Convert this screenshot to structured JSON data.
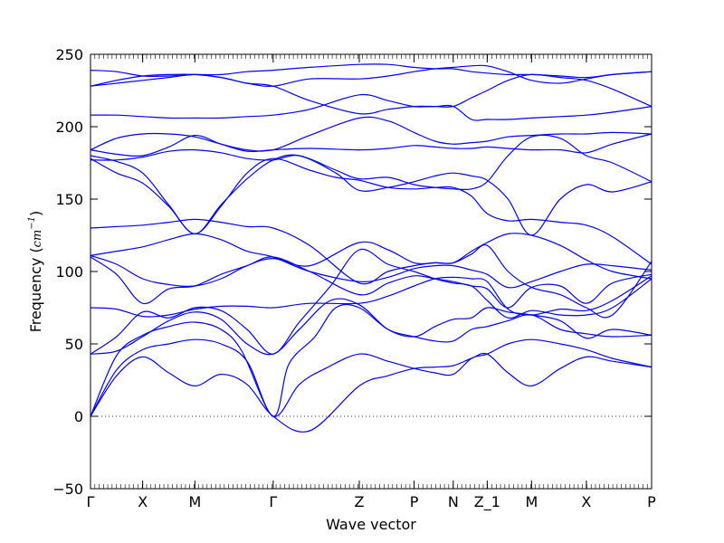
{
  "chart_data": {
    "type": "line",
    "xlabel": "Wave vector",
    "ylabel_text": "Frequency (",
    "ylabel_unit_base": "cm",
    "ylabel_unit_exp": "−1",
    "ylabel_close": ")",
    "ylim": [
      -50,
      250
    ],
    "yticks": [
      -50,
      0,
      50,
      100,
      150,
      200,
      250
    ],
    "xlim": [
      0,
      10.75
    ],
    "high_symmetry_points": [
      {
        "label": "Γ",
        "x": 0.0
      },
      {
        "label": "X",
        "x": 1.0
      },
      {
        "label": "M",
        "x": 2.0
      },
      {
        "label": "Γ",
        "x": 3.5
      },
      {
        "label": "Z",
        "x": 5.15
      },
      {
        "label": "P",
        "x": 6.2
      },
      {
        "label": "N",
        "x": 6.95
      },
      {
        "label": "Z_1",
        "x": 7.6
      },
      {
        "label": "M",
        "x": 8.45
      },
      {
        "label": "X",
        "x": 9.5
      },
      {
        "label": "P",
        "x": 10.75
      }
    ],
    "zero_line": {
      "y": 0,
      "style": "dotted",
      "color": "#000000"
    },
    "line_color": "#0000ff",
    "series": [
      {
        "x": [
          0,
          0.5,
          1.0,
          1.5,
          2.0,
          2.5,
          3.0,
          3.5,
          4.2,
          5.15,
          5.7,
          6.2,
          6.6,
          6.95,
          7.3,
          7.6,
          8.0,
          8.45,
          9.0,
          9.5,
          10.0,
          10.75
        ],
        "values": [
          0,
          28,
          41,
          30,
          21,
          29,
          22,
          0,
          -10,
          21,
          28,
          33,
          34,
          35,
          40,
          43,
          30,
          21,
          33,
          41,
          38,
          34
        ]
      },
      {
        "x": [
          0,
          0.5,
          1.0,
          1.5,
          2.0,
          2.5,
          3.0,
          3.5,
          4.0,
          4.5,
          5.15,
          5.7,
          6.2,
          6.6,
          6.95,
          7.3,
          7.6,
          8.0,
          8.45,
          9.0,
          9.5,
          10.0,
          10.75
        ],
        "values": [
          0,
          32,
          46,
          50,
          53,
          50,
          38,
          0,
          22,
          33,
          43,
          38,
          33,
          30,
          29,
          40,
          43,
          50,
          53,
          50,
          46,
          40,
          34
        ]
      },
      {
        "x": [
          0,
          0.5,
          1.0,
          1.5,
          2.0,
          2.5,
          2.9,
          3.5,
          3.8,
          4.3,
          4.7,
          5.15,
          5.7,
          6.2,
          6.6,
          6.95,
          7.3,
          7.6,
          8.0,
          8.45,
          9.0,
          9.5,
          10.0,
          10.75
        ],
        "values": [
          0,
          42,
          56,
          62,
          65,
          60,
          45,
          0,
          36,
          55,
          75,
          75,
          60,
          55,
          52,
          52,
          60,
          62,
          66,
          70,
          60,
          57,
          55,
          56
        ]
      },
      {
        "x": [
          0,
          0.5,
          1.0,
          1.5,
          2.0,
          2.5,
          3.0,
          3.5,
          4.0,
          4.6,
          5.15,
          5.7,
          6.2,
          6.6,
          6.95,
          7.3,
          7.6,
          8.0,
          8.45,
          9.0,
          9.5,
          10.0,
          10.75
        ],
        "values": [
          43,
          45,
          55,
          66,
          72,
          67,
          50,
          43,
          60,
          80,
          77,
          60,
          55,
          62,
          67,
          68,
          75,
          72,
          70,
          66,
          54,
          60,
          56
        ]
      },
      {
        "x": [
          0,
          0.5,
          1.0,
          1.5,
          2.0,
          2.5,
          3.0,
          3.5,
          4.0,
          4.6,
          5.15,
          5.7,
          6.2,
          6.6,
          6.95,
          7.3,
          7.6,
          8.0,
          8.45,
          9.0,
          9.5,
          10.0,
          10.75
        ],
        "values": [
          43,
          55,
          72,
          68,
          75,
          73,
          60,
          43,
          65,
          90,
          115,
          105,
          100,
          95,
          92,
          90,
          80,
          68,
          73,
          70,
          70,
          75,
          95
        ]
      },
      {
        "x": [
          0,
          0.5,
          1.0,
          1.5,
          2.0,
          2.5,
          3.0,
          3.5,
          4.2,
          5.15,
          5.7,
          6.2,
          6.6,
          6.95,
          7.3,
          7.6,
          8.0,
          8.45,
          9.0,
          9.5,
          10.0,
          10.75
        ],
        "values": [
          75,
          74,
          69,
          70,
          74,
          76,
          76,
          75,
          78,
          78,
          83,
          90,
          95,
          96,
          95,
          93,
          74,
          70,
          74,
          73,
          80,
          97
        ]
      },
      {
        "x": [
          0,
          0.5,
          1.0,
          1.5,
          2.0,
          2.5,
          3.0,
          3.5,
          4.2,
          5.15,
          5.7,
          6.2,
          6.6,
          6.95,
          7.3,
          7.6,
          8.0,
          8.45,
          9.0,
          9.5,
          10.0,
          10.75
        ],
        "values": [
          110,
          98,
          78,
          88,
          90,
          98,
          104,
          110,
          100,
          84,
          92,
          97,
          95,
          93,
          90,
          88,
          75,
          89,
          90,
          78,
          92,
          98
        ]
      },
      {
        "x": [
          0,
          0.5,
          1.0,
          1.5,
          2.0,
          2.5,
          3.0,
          3.5,
          4.2,
          5.15,
          5.7,
          6.2,
          6.6,
          6.95,
          7.3,
          7.6,
          8.0,
          8.45,
          9.0,
          9.5,
          10.0,
          10.75
        ],
        "values": [
          111,
          105,
          95,
          91,
          90,
          95,
          104,
          109,
          104,
          120,
          115,
          106,
          106,
          106,
          112,
          118,
          100,
          89,
          84,
          75,
          70,
          107
        ]
      },
      {
        "x": [
          0,
          0.5,
          1.0,
          1.5,
          2.0,
          2.5,
          3.0,
          3.5,
          4.2,
          5.15,
          5.7,
          6.2,
          6.6,
          6.95,
          7.3,
          7.6,
          8.0,
          8.45,
          9.0,
          9.5,
          10.0,
          10.75
        ],
        "values": [
          111,
          114,
          117,
          122,
          126,
          122,
          114,
          110,
          100,
          93,
          96,
          102,
          104,
          104,
          101,
          98,
          89,
          93,
          100,
          105,
          104,
          101
        ]
      },
      {
        "x": [
          0,
          0.5,
          1.0,
          1.5,
          2.0,
          2.5,
          3.0,
          3.5,
          4.2,
          5.15,
          5.7,
          6.2,
          6.6,
          6.95,
          7.3,
          7.6,
          8.0,
          8.45,
          9.0,
          9.5,
          10.0,
          10.75
        ],
        "values": [
          130,
          131,
          132,
          134,
          136,
          134,
          131,
          130,
          118,
          92,
          100,
          104,
          106,
          106,
          114,
          120,
          126,
          125,
          118,
          108,
          100,
          95
        ]
      },
      {
        "x": [
          0,
          0.5,
          1.0,
          1.5,
          2.0,
          2.5,
          3.0,
          3.5,
          4.2,
          4.7,
          5.15,
          5.7,
          6.2,
          6.6,
          6.95,
          7.3,
          7.6,
          8.0,
          8.45,
          9.0,
          9.5,
          10.0,
          10.75
        ],
        "values": [
          178,
          168,
          161,
          145,
          126,
          145,
          168,
          178,
          170,
          165,
          163,
          158,
          157,
          158,
          158,
          152,
          140,
          135,
          136,
          134,
          132,
          124,
          105
        ]
      },
      {
        "x": [
          0,
          0.5,
          1.0,
          1.5,
          2.0,
          2.5,
          3.0,
          3.5,
          4.0,
          4.7,
          5.15,
          5.7,
          6.2,
          6.6,
          6.95,
          7.3,
          7.6,
          8.0,
          8.45,
          9.0,
          9.5,
          10.0,
          10.75
        ],
        "values": [
          180,
          176,
          168,
          146,
          126,
          146,
          164,
          177,
          180,
          168,
          156,
          158,
          162,
          166,
          168,
          166,
          163,
          150,
          125,
          150,
          160,
          155,
          162
        ]
      },
      {
        "x": [
          0,
          0.5,
          1.0,
          1.5,
          2.0,
          2.5,
          3.0,
          3.5,
          4.0,
          4.7,
          5.15,
          5.7,
          6.2,
          6.6,
          6.95,
          7.3,
          7.6,
          8.0,
          8.45,
          9.0,
          9.5,
          10.0,
          10.75
        ],
        "values": [
          177,
          177,
          179,
          183,
          184,
          182,
          178,
          177,
          180,
          170,
          164,
          165,
          160,
          158,
          157,
          157,
          162,
          180,
          193,
          192,
          180,
          175,
          162
        ]
      },
      {
        "x": [
          0,
          0.5,
          1.0,
          1.5,
          2.0,
          2.5,
          3.0,
          3.5,
          4.2,
          5.15,
          5.7,
          6.2,
          6.6,
          6.95,
          7.3,
          7.6,
          8.0,
          8.45,
          9.0,
          9.5,
          10.0,
          10.75
        ],
        "values": [
          184,
          181,
          180,
          186,
          194,
          188,
          183,
          184,
          185,
          184,
          185,
          187,
          186,
          185,
          185,
          186,
          185,
          184,
          184,
          182,
          188,
          195
        ]
      },
      {
        "x": [
          0,
          0.5,
          1.0,
          1.5,
          2.0,
          2.5,
          3.0,
          3.5,
          4.2,
          5.15,
          5.7,
          6.2,
          6.6,
          6.95,
          7.3,
          7.6,
          8.0,
          8.45,
          9.0,
          9.5,
          10.0,
          10.75
        ],
        "values": [
          184,
          192,
          195,
          195,
          193,
          188,
          184,
          184,
          194,
          206,
          204,
          196,
          190,
          188,
          189,
          190,
          193,
          194,
          195,
          195,
          196,
          195
        ]
      },
      {
        "x": [
          0,
          0.5,
          1.0,
          1.5,
          2.0,
          2.5,
          3.0,
          3.5,
          4.2,
          5.15,
          5.7,
          6.2,
          6.6,
          6.95,
          7.3,
          7.6,
          8.0,
          8.45,
          9.0,
          9.5,
          10.0,
          10.75
        ],
        "values": [
          208,
          208,
          207,
          206,
          206,
          206,
          207,
          208,
          212,
          222,
          218,
          214,
          214,
          214,
          205,
          205,
          205,
          206,
          207,
          208,
          210,
          214
        ]
      },
      {
        "x": [
          0,
          0.5,
          1.0,
          1.5,
          2.0,
          2.5,
          3.0,
          3.5,
          4.2,
          5.15,
          5.7,
          6.2,
          6.6,
          6.95,
          7.3,
          7.6,
          8.0,
          8.45,
          9.0,
          9.5,
          10.0,
          10.75
        ],
        "values": [
          228,
          232,
          235,
          236,
          236,
          234,
          230,
          228,
          218,
          209,
          212,
          214,
          214,
          214,
          220,
          225,
          232,
          236,
          234,
          232,
          226,
          214
        ]
      },
      {
        "x": [
          0,
          0.5,
          1.0,
          1.5,
          2.0,
          2.5,
          3.0,
          3.5,
          4.2,
          5.15,
          5.7,
          6.2,
          6.6,
          6.95,
          7.3,
          7.6,
          8.0,
          8.45,
          9.0,
          9.5,
          10.0,
          10.75
        ],
        "values": [
          228,
          230,
          232,
          234,
          236,
          234,
          230,
          228,
          233,
          233,
          235,
          238,
          240,
          241,
          242,
          242,
          238,
          232,
          230,
          233,
          236,
          238
        ]
      },
      {
        "x": [
          0,
          0.5,
          1.0,
          1.5,
          2.0,
          2.5,
          3.0,
          3.5,
          4.2,
          5.15,
          5.7,
          6.2,
          6.6,
          6.95,
          7.3,
          7.6,
          8.0,
          8.45,
          9.0,
          9.5,
          10.0,
          10.75
        ],
        "values": [
          239,
          238,
          235,
          235,
          236,
          236,
          238,
          239,
          241,
          243,
          243,
          241,
          240,
          240,
          238,
          237,
          236,
          236,
          235,
          234,
          236,
          238
        ]
      }
    ]
  }
}
